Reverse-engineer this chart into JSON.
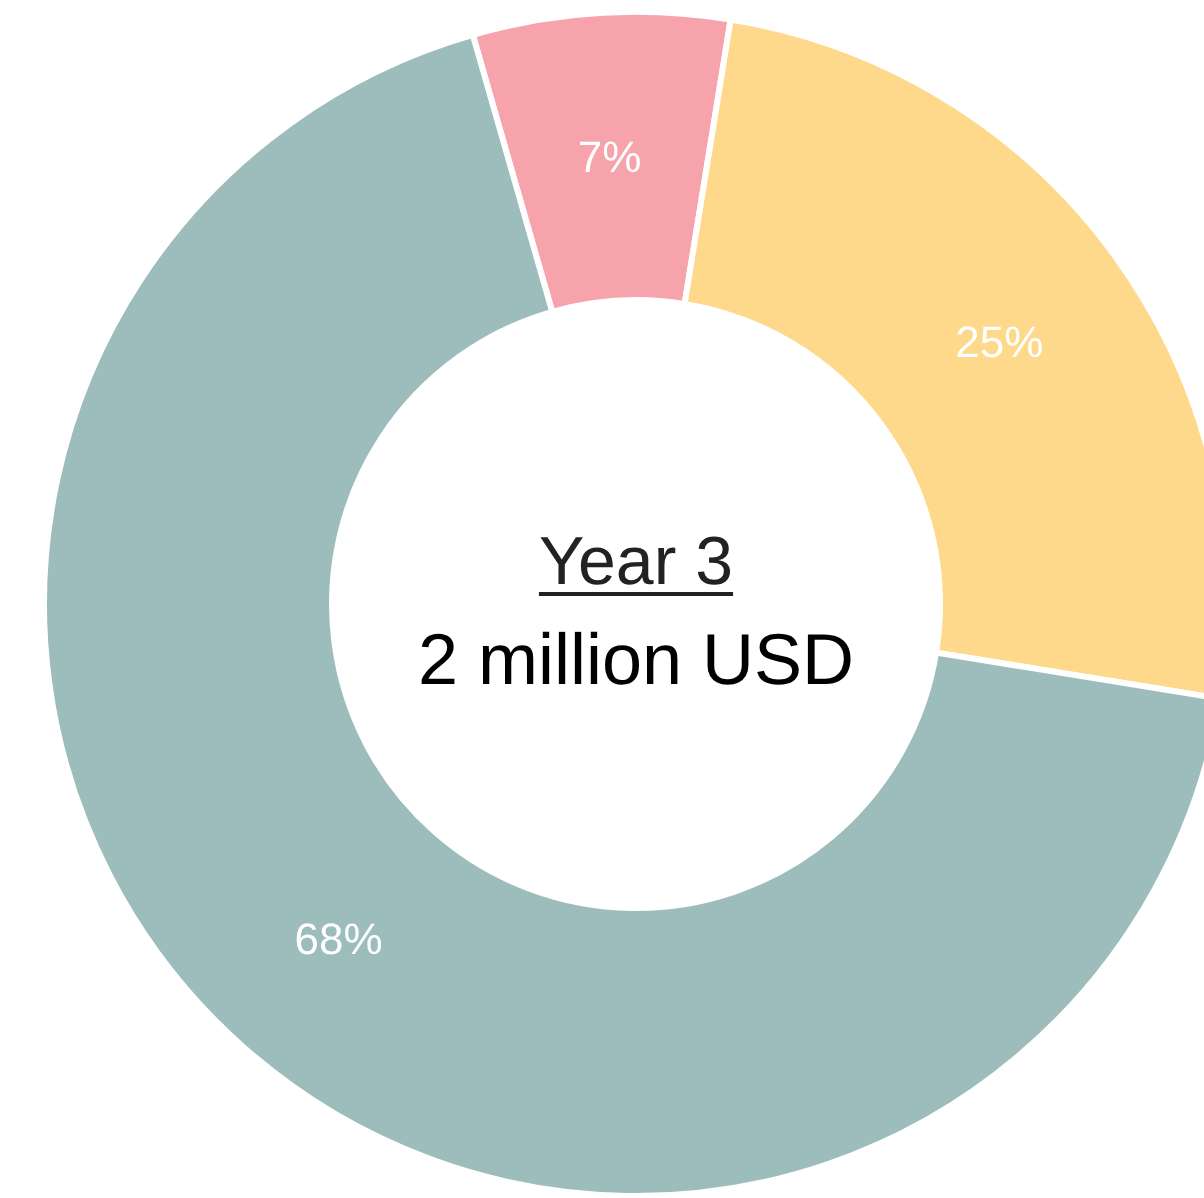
{
  "chart_data": {
    "type": "donut",
    "title": "Year 3",
    "subtitle": "2 million USD",
    "categories": [
      null,
      null,
      null
    ],
    "values": [
      7,
      25,
      68
    ],
    "colors": [
      "#f7a3ab",
      "#fed98b",
      "#9dbdbd"
    ],
    "value_labels": [
      "7%",
      "25%",
      "68%"
    ]
  }
}
